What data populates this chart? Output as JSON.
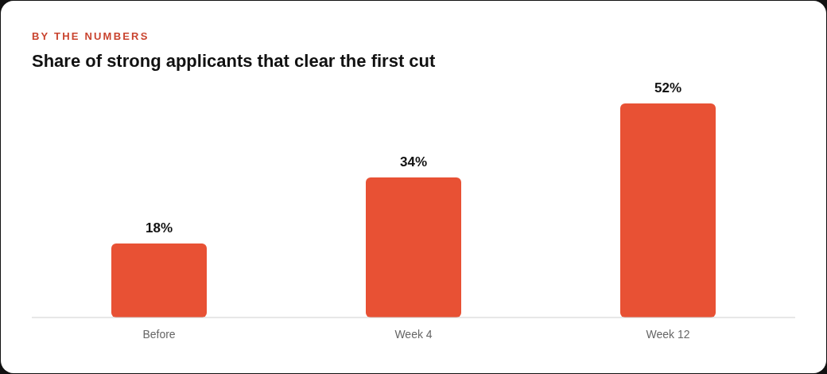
{
  "chart_data": {
    "type": "bar",
    "subtitle": "BY THE NUMBERS",
    "title": "Share of strong applicants that clear the first cut",
    "categories": [
      "Before",
      "Week 4",
      "Week 12"
    ],
    "values": [
      18,
      34,
      52
    ],
    "value_labels": [
      "18%",
      "34%",
      "52%"
    ],
    "color": "#e85134"
  }
}
